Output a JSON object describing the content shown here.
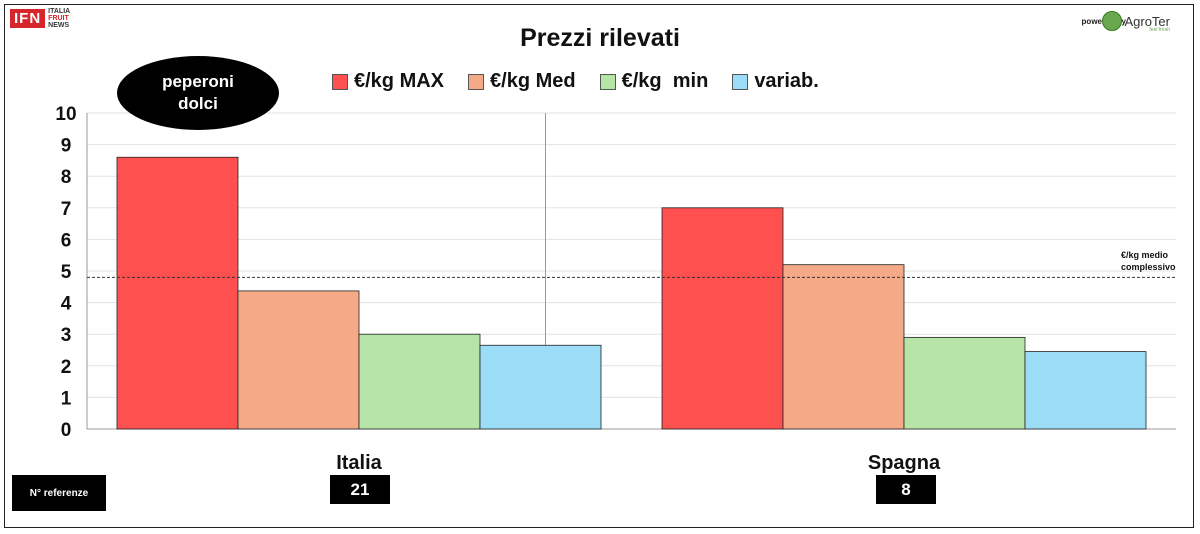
{
  "header": {
    "logo_text": "IFN",
    "logo_sub": [
      "ITALIA",
      "FRUIT",
      "NEWS"
    ],
    "powered_by": "powered by",
    "sponsor": "AgroTer",
    "sponsor_tag": "feel fresh"
  },
  "product_label": [
    "peperoni",
    "dolci"
  ],
  "references": {
    "label": "N° referenze",
    "values": [
      "21",
      "8"
    ]
  },
  "average_label": [
    "€/kg medio",
    "complessivo"
  ],
  "colors": {
    "max": "#ff5050",
    "med": "#f4a987",
    "min": "#b7e4a7",
    "var": "#9bdcf6"
  },
  "chart_data": {
    "type": "bar",
    "title": "Prezzi rilevati",
    "categories": [
      "Italia",
      "Spagna"
    ],
    "series": [
      {
        "name": "€/kg MAX",
        "values": [
          8.6,
          7.0
        ]
      },
      {
        "name": "€/kg Med",
        "values": [
          4.37,
          5.2
        ]
      },
      {
        "name": "€/kg  min",
        "values": [
          3.0,
          2.9
        ]
      },
      {
        "name": "variab.",
        "values": [
          2.65,
          2.45
        ]
      }
    ],
    "average": 4.8,
    "ylim": [
      0,
      10
    ],
    "yticks": [
      "0",
      "1",
      "2",
      "3",
      "4",
      "5",
      "6",
      "7",
      "8",
      "9",
      "10"
    ],
    "grid": true,
    "legend": "top"
  }
}
